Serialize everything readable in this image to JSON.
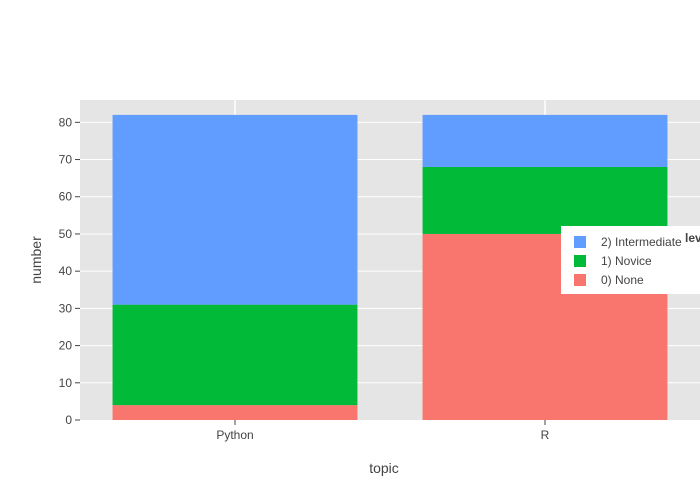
{
  "chart_data": {
    "type": "bar",
    "stacked": true,
    "title": "",
    "xlabel": "topic",
    "ylabel": "number",
    "categories": [
      "Python",
      "R"
    ],
    "ylim": [
      0,
      86
    ],
    "yticks": [
      0,
      10,
      20,
      30,
      40,
      50,
      60,
      70,
      80
    ],
    "grid": true,
    "legend_title": "lev",
    "legend_position": "right",
    "series": [
      {
        "name": "0) None",
        "values": [
          4,
          50
        ],
        "color": "#F8766D"
      },
      {
        "name": "1) Novice",
        "values": [
          27,
          18
        ],
        "color": "#00BA38"
      },
      {
        "name": "2) Intermediate",
        "values": [
          51,
          14
        ],
        "color": "#619CFF"
      }
    ]
  }
}
